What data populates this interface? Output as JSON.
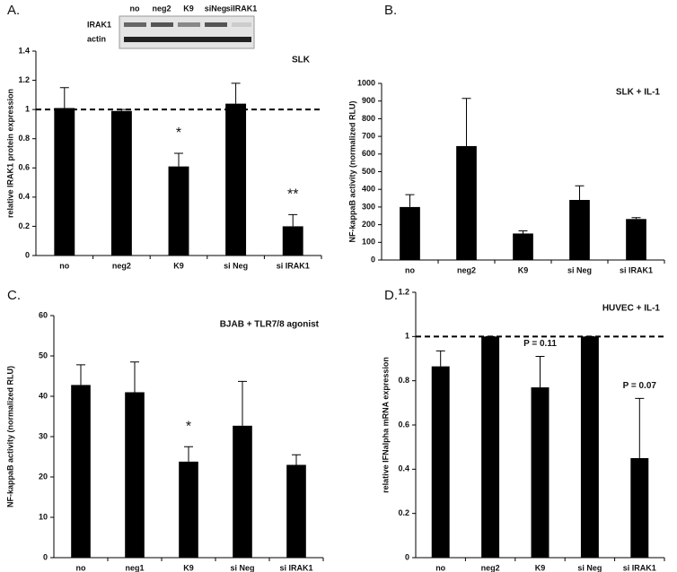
{
  "chart_data": [
    {
      "type": "bar",
      "panel": "A.",
      "title": "SLK",
      "y_label": "relative IRAK1 protein expression",
      "categories": [
        "no",
        "neg2",
        "K9",
        "si Neg",
        "si IRAK1"
      ],
      "values": [
        1.01,
        0.99,
        0.61,
        1.04,
        0.2
      ],
      "errors": [
        0.14,
        0.01,
        0.09,
        0.14,
        0.08
      ],
      "color": "#000000",
      "ylim": [
        0,
        1.4
      ],
      "yticks": [
        0,
        0.2,
        0.4,
        0.6,
        0.8,
        1,
        1.2,
        1.4
      ],
      "refline": 1,
      "annotations": [
        {
          "x": "K9",
          "text": "*"
        },
        {
          "x": "si IRAK1",
          "text": "**"
        }
      ],
      "blot": {
        "lanes": [
          "no",
          "neg2",
          "K9",
          "siNeg",
          "siIRAK1"
        ],
        "rows": [
          "IRAK1",
          "actin"
        ]
      }
    },
    {
      "type": "bar",
      "panel": "B.",
      "title": "SLK + IL-1",
      "y_label": "NF-kappaB activity (normalized RLU)",
      "categories": [
        "no",
        "neg2",
        "K9",
        "si Neg",
        "si IRAK1"
      ],
      "values": [
        300,
        645,
        150,
        340,
        232
      ],
      "errors": [
        70,
        270,
        15,
        80,
        8
      ],
      "color": "#000000",
      "ylim": [
        0,
        1000
      ],
      "yticks": [
        0,
        100,
        200,
        300,
        400,
        500,
        600,
        700,
        800,
        900,
        1000
      ]
    },
    {
      "type": "bar",
      "panel": "C.",
      "title": "BJAB + TLR7/8 agonist",
      "y_label": "NF-kappaB activity (normalized RLU)",
      "categories": [
        "no",
        "neg1",
        "K9",
        "si Neg",
        "si IRAK1"
      ],
      "values": [
        42.8,
        41,
        23.8,
        32.7,
        23
      ],
      "errors": [
        5,
        7.5,
        3.7,
        11,
        2.5
      ],
      "color": "#000000",
      "ylim": [
        0,
        60
      ],
      "yticks": [
        0,
        10,
        20,
        30,
        40,
        50,
        60
      ],
      "annotations": [
        {
          "x": "K9",
          "text": "*"
        }
      ]
    },
    {
      "type": "bar",
      "panel": "D.",
      "title": "HUVEC + IL-1",
      "y_label": "relative IFNalpha mRNA expression",
      "categories": [
        "no",
        "neg2",
        "K9",
        "si Neg",
        "si IRAK1"
      ],
      "values": [
        0.865,
        1,
        0.77,
        1,
        0.45
      ],
      "errors": [
        0.07,
        0,
        0.14,
        0,
        0.27
      ],
      "color": "#000000",
      "ylim": [
        0,
        1.2
      ],
      "yticks": [
        0,
        0.2,
        0.4,
        0.6,
        0.8,
        1,
        1.2
      ],
      "refline": 1,
      "annotations": [
        {
          "x": "K9",
          "text": "P = 0.11"
        },
        {
          "x": "si IRAK1",
          "text": "P = 0.07"
        }
      ]
    }
  ]
}
